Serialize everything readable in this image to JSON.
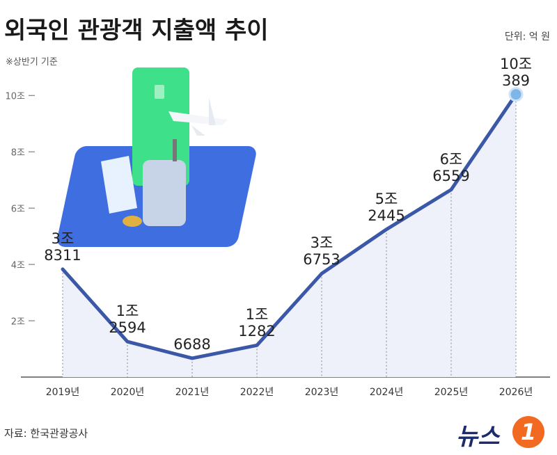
{
  "chart_data": {
    "type": "line",
    "title": "외국인 관광객 지출액 추이",
    "unit": "단위: 억 원",
    "note": "※상반기 기준",
    "source": "자료: 한국관광공사",
    "logo": {
      "text": "뉴스",
      "number": "1"
    },
    "categories": [
      "2019년",
      "2020년",
      "2021년",
      "2022년",
      "2023년",
      "2024년",
      "2025년",
      "2026년"
    ],
    "values": [
      38311,
      12594,
      6688,
      11282,
      36753,
      52445,
      66559,
      100389
    ],
    "value_labels": [
      "3조\n8311",
      "1조\n2594",
      "6688",
      "1조\n1282",
      "3조\n6753",
      "5조\n2445",
      "6조\n6559",
      "10조389"
    ],
    "color": "#3a57a8",
    "area_color": "#eef0fa",
    "ylim": [
      0,
      105000
    ],
    "yticks": [
      {
        "value": 20000,
        "label": "2조"
      },
      {
        "value": 40000,
        "label": "4조"
      },
      {
        "value": 60000,
        "label": "6조"
      },
      {
        "value": 80000,
        "label": "8조"
      },
      {
        "value": 100000,
        "label": "10조"
      }
    ]
  }
}
